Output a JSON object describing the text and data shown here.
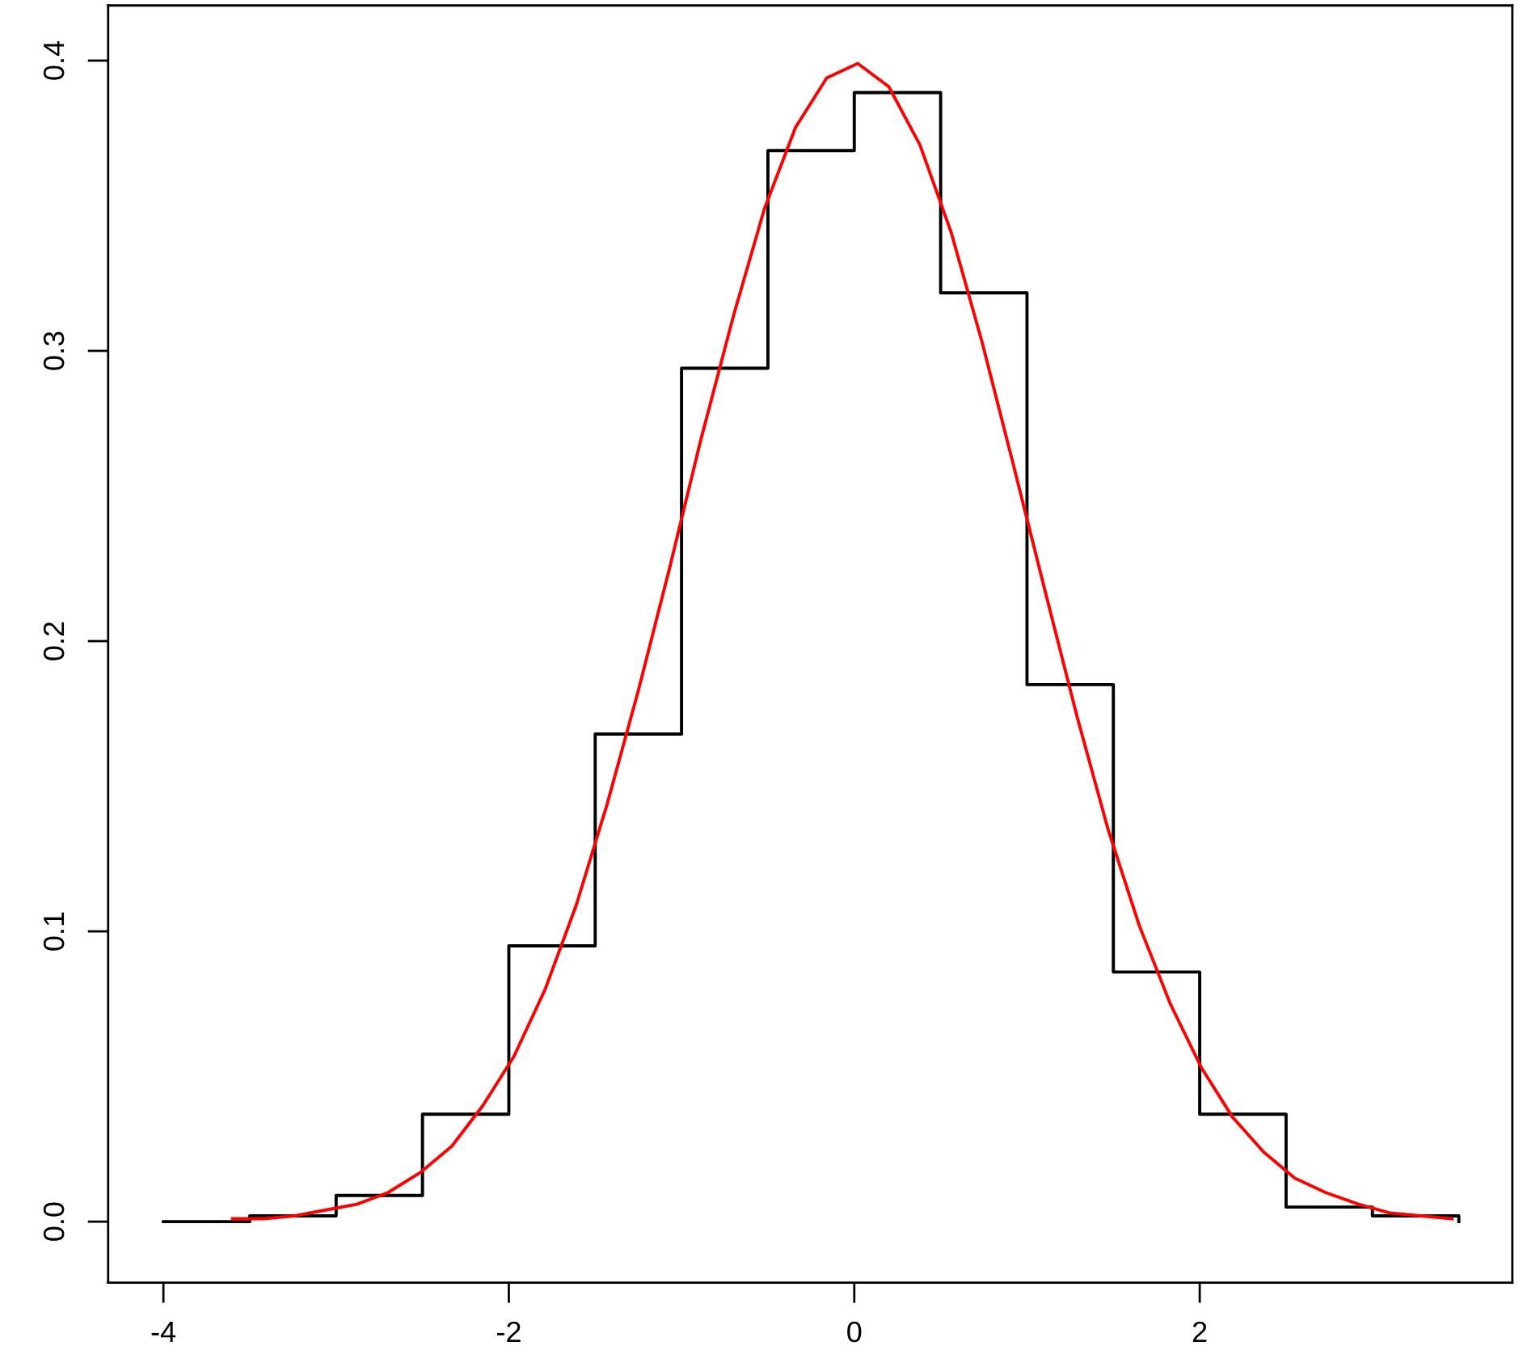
{
  "chart_data": {
    "type": "line",
    "xlim": [
      -4.32,
      3.81
    ],
    "xticks": [
      -4,
      -2,
      0,
      2
    ],
    "ylim": [
      -0.021,
      0.419
    ],
    "yticks": [
      {
        "value": 0.0,
        "label": "0.0"
      },
      0.1,
      0.2,
      0.3,
      0.4
    ],
    "grid": false,
    "marker": "none",
    "line_style": "solid",
    "series": [
      {
        "type": "step",
        "color": "#000000",
        "x": [
          -4.0,
          -3.5,
          -3.0,
          -2.5,
          -2.0,
          -1.5,
          -1.0,
          -0.5,
          0.0,
          0.5,
          1.0,
          1.5,
          2.0,
          2.5,
          3.0,
          3.5
        ],
        "values": [
          0.0,
          0.002,
          0.009,
          0.037,
          0.095,
          0.168,
          0.294,
          0.369,
          0.389,
          0.32,
          0.185,
          0.086,
          0.037,
          0.005,
          0.002,
          0.0
        ]
      },
      {
        "color": "#ff0000",
        "x": [
          -3.6,
          -3.42,
          -3.24,
          -3.06,
          -2.88,
          -2.7,
          -2.51,
          -2.33,
          -2.15,
          -1.97,
          -1.79,
          -1.61,
          -1.43,
          -1.25,
          -1.07,
          -0.89,
          -0.7,
          -0.52,
          -0.34,
          -0.16,
          0.02,
          0.2,
          0.38,
          0.56,
          0.74,
          0.92,
          1.11,
          1.29,
          1.47,
          1.65,
          1.83,
          2.01,
          2.19,
          2.37,
          2.55,
          2.73,
          2.92,
          3.1,
          3.28,
          3.46
        ],
        "values": [
          0.001,
          0.001,
          0.002,
          0.004,
          0.006,
          0.01,
          0.017,
          0.026,
          0.04,
          0.057,
          0.08,
          0.109,
          0.144,
          0.183,
          0.225,
          0.269,
          0.312,
          0.349,
          0.377,
          0.394,
          0.399,
          0.391,
          0.371,
          0.341,
          0.303,
          0.261,
          0.216,
          0.174,
          0.135,
          0.102,
          0.075,
          0.053,
          0.036,
          0.024,
          0.015,
          0.01,
          0.006,
          0.003,
          0.002,
          0.001
        ]
      }
    ]
  }
}
